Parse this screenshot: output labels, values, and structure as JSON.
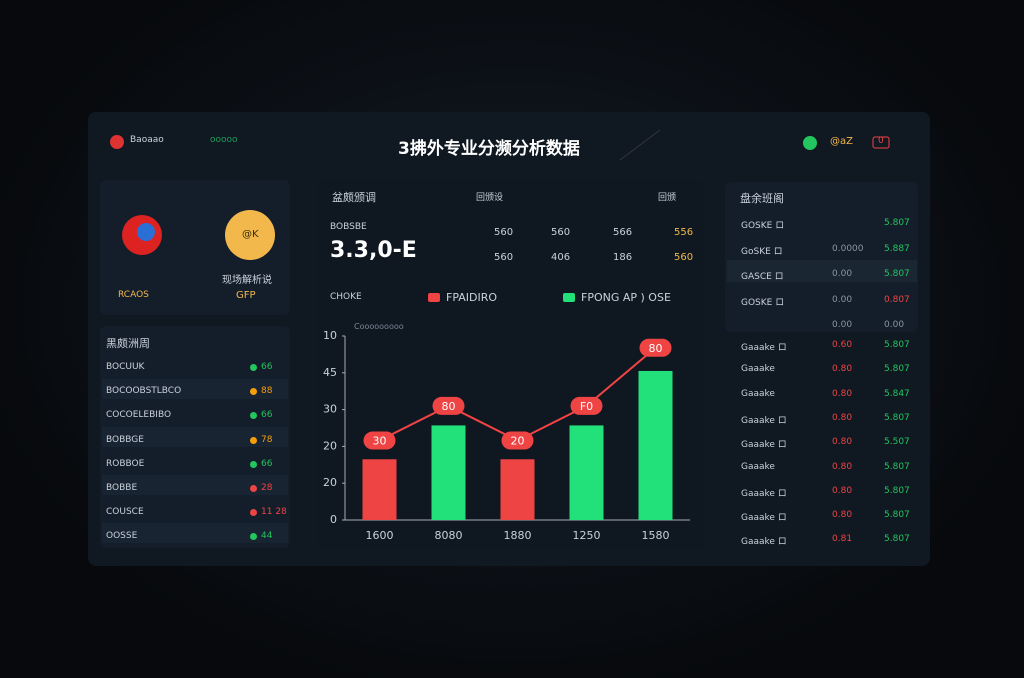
{
  "header": {
    "brand": "Baoaao",
    "brand_sub": "ooooo",
    "title": "3拂外专业分濒分析数据",
    "status": "@aZ",
    "badge": "0"
  },
  "hero": {
    "left_caption": "RCAOS",
    "coin": "@K",
    "right_caption": "现场解析说",
    "right_sub": "GFP"
  },
  "left_list": {
    "title": "黑颇洲周",
    "rows": [
      {
        "name": "BOCUUK",
        "value": "66",
        "color": "#22c55e"
      },
      {
        "name": "BOCOOBSTLBCO",
        "value": "88",
        "color": "#f59e0b"
      },
      {
        "name": "COCOELEBIBO",
        "value": "66",
        "color": "#22c55e"
      },
      {
        "name": "BOBBGE",
        "value": "78",
        "color": "#f59e0b"
      },
      {
        "name": "ROBBOE",
        "value": "66",
        "color": "#22c55e"
      },
      {
        "name": "BOBBE",
        "value": "28",
        "color": "#ef4444"
      },
      {
        "name": "COUSCE",
        "value": "11 28",
        "color": "#ef4444"
      },
      {
        "name": "OOSSE",
        "value": "44",
        "color": "#22c55e"
      }
    ]
  },
  "center": {
    "title": "盆颇颁调",
    "col_a": "回颁设",
    "col_b": "回颁",
    "big_value": "3.3,0-E",
    "big_label": "BOBSBE",
    "stats": [
      [
        "560",
        "560",
        "566",
        "556"
      ],
      [
        "560",
        "406",
        "186",
        "560"
      ]
    ],
    "legend_label": "CHOKE"
  },
  "chart": {
    "type": "bar",
    "caption": "Cooooooooo",
    "categories": [
      "1600",
      "8080",
      "1880",
      "1250",
      "1580"
    ],
    "series": [
      {
        "name": "FPAIDIRO",
        "color": "#ef4444",
        "kind": "line"
      },
      {
        "name": "FPONG AP ) OSE",
        "color": "#22e07a",
        "kind": "bar"
      }
    ],
    "bars": [
      16.5,
      25.7,
      16.5,
      25.7,
      40.5
    ],
    "bar_colors": [
      "#ef4444",
      "#22e07a",
      "#ef4444",
      "#22e07a",
      "#22e07a"
    ],
    "line": [
      21.6,
      31,
      21.6,
      31,
      46.8
    ],
    "line_labels": [
      "30",
      "80",
      "20",
      "F0",
      "80"
    ],
    "ylim": [
      0,
      50
    ],
    "yticks": [
      0,
      {
        "value": 10,
        "label": "20"
      },
      {
        "value": 20,
        "label": "20"
      },
      30,
      {
        "value": 40,
        "label": "45"
      },
      {
        "value": 50,
        "label": "10"
      }
    ]
  },
  "right_list": {
    "title": "盘余班阁",
    "rows": [
      {
        "name": "GOSKE ロ",
        "b": "5.807",
        "bc": "#22c55e"
      },
      {
        "name": "GoSKE ロ",
        "a": "0.0000",
        "b": "5.887",
        "bc": "#22c55e"
      },
      {
        "name": "GASCE ロ",
        "a": "0.00",
        "b": "5.807",
        "bc": "#22c55e"
      },
      {
        "name": "GOSKE ロ",
        "a": "0.00",
        "b": "0.807",
        "bc": "#ef4444"
      },
      {
        "a": "0.00",
        "b": "0.00",
        "bc": "#8a94a3"
      },
      {
        "name": "Gaaake ロ",
        "a": "0.60",
        "b": "5.807",
        "bc": "#22c55e"
      },
      {
        "name": "Gaaake",
        "a": "0.80",
        "b": "5.807",
        "bc": "#22c55e"
      },
      {
        "name": "Gaaake",
        "a": "0.80",
        "b": "5.847",
        "bc": "#22c55e"
      },
      {
        "name": "Gaaake ロ",
        "a": "0.80",
        "b": "5.807",
        "bc": "#22c55e"
      },
      {
        "name": "Gaaake ロ",
        "a": "0.80",
        "b": "5.507",
        "bc": "#22c55e"
      },
      {
        "name": "Gaaake",
        "a": "0.80",
        "b": "5.807",
        "bc": "#22c55e"
      },
      {
        "name": "Gaaake ロ",
        "a": "0.80",
        "b": "5.807",
        "bc": "#22c55e"
      },
      {
        "name": "Gaaake ロ",
        "a": "0.80",
        "b": "5.807",
        "bc": "#22c55e"
      },
      {
        "name": "Gaaake ロ",
        "a": "0.81",
        "b": "5.807",
        "bc": "#22c55e"
      }
    ]
  }
}
